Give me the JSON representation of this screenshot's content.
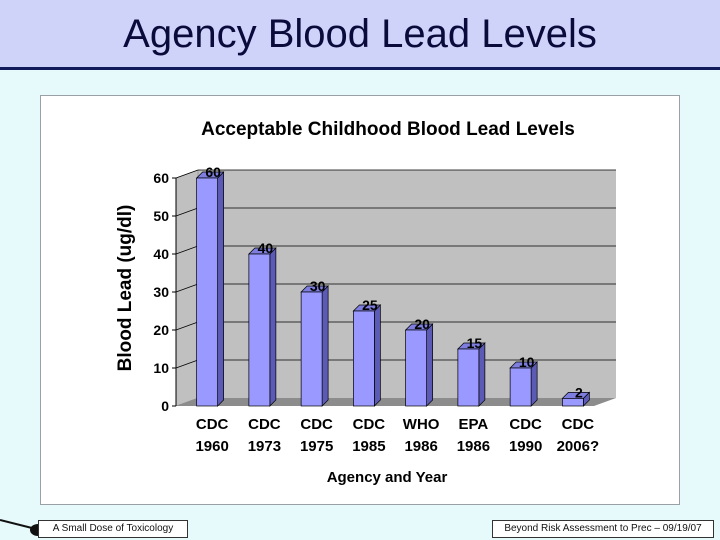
{
  "slide": {
    "title": "Agency Blood Lead Levels",
    "footer_left": "A Small Dose of Toxicology",
    "footer_right": "Beyond Risk Assessment to Prec – 09/19/07",
    "logo_icon": "spoon-icon"
  },
  "colors": {
    "bar_face": "#9999ff",
    "bar_side": "#5b5bb5",
    "bar_top": "#7e7ee0",
    "plot_wall": "#c0c0c0",
    "plot_floor": "#8c8c8c",
    "title_band": "#cfd3fa"
  },
  "chart_data": {
    "type": "bar",
    "title": "Acceptable Childhood Blood Lead Levels",
    "xlabel": "Agency and Year",
    "ylabel": "Blood Lead (ug/dl)",
    "categories": [
      [
        "CDC",
        "1960"
      ],
      [
        "CDC",
        "1973"
      ],
      [
        "CDC",
        "1975"
      ],
      [
        "CDC",
        "1985"
      ],
      [
        "WHO",
        "1986"
      ],
      [
        "EPA",
        "1986"
      ],
      [
        "CDC",
        "1990"
      ],
      [
        "CDC",
        "2006?"
      ]
    ],
    "values": [
      60,
      40,
      30,
      25,
      20,
      15,
      10,
      2
    ],
    "ylim": [
      0,
      60
    ],
    "yticks": [
      0,
      10,
      20,
      30,
      40,
      50,
      60
    ],
    "grid": true,
    "legend": "none",
    "style": "3d-column"
  }
}
